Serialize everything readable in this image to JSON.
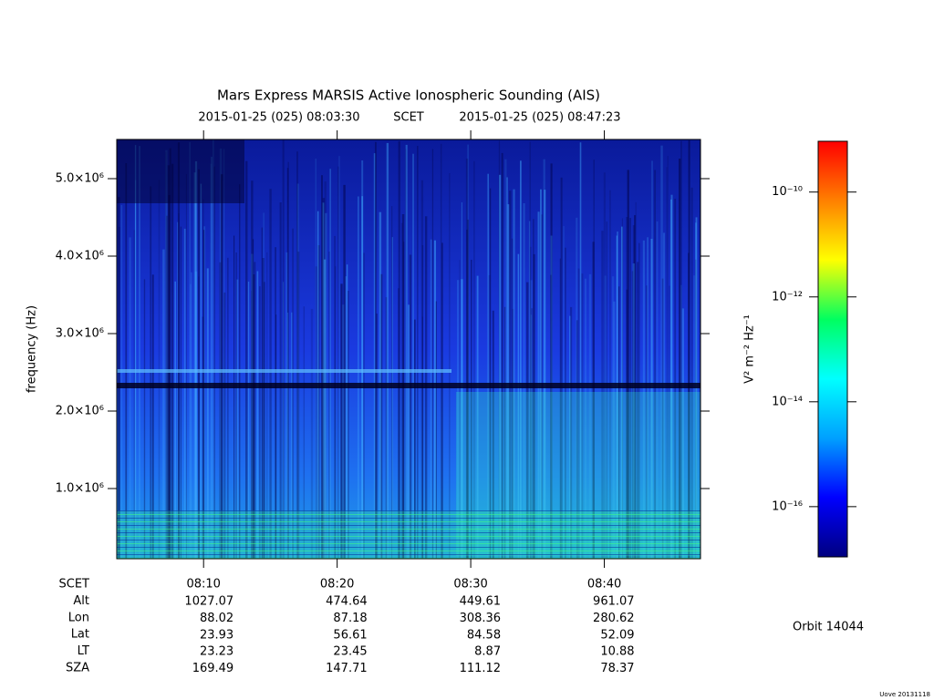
{
  "chart_data": {
    "type": "spectrogram",
    "title": "Mars Express MARSIS Active Ionospheric Sounding (AIS)",
    "start_time": "2015-01-25 (025) 08:03:30",
    "time_system": "SCET",
    "end_time": "2015-01-25 (025) 08:47:23",
    "y_label": "frequency (Hz)",
    "xlim": [
      483.5,
      527.2
    ],
    "xticks": [
      {
        "value": 490,
        "label": "08:10"
      },
      {
        "value": 500,
        "label": "08:20"
      },
      {
        "value": 510,
        "label": "08:30"
      },
      {
        "value": 520,
        "label": "08:40"
      }
    ],
    "ylim": [
      94000,
      5506000
    ],
    "yticks": [
      {
        "value": 1000000,
        "label": "1.0×10⁶"
      },
      {
        "value": 2000000,
        "label": "2.0×10⁶"
      },
      {
        "value": 3000000,
        "label": "3.0×10⁶"
      },
      {
        "value": 4000000,
        "label": "4.0×10⁶"
      },
      {
        "value": 5000000,
        "label": "5.0×10⁶"
      }
    ],
    "colorbar": {
      "label": "V² m⁻² Hz⁻¹",
      "log_scale": true,
      "lim": [
        1.1e-17,
        9.3e-10
      ],
      "ticks": [
        {
          "value": 1e-10,
          "label": "10⁻¹⁰"
        },
        {
          "value": 1e-12,
          "label": "10⁻¹²"
        },
        {
          "value": 1e-14,
          "label": "10⁻¹⁴"
        },
        {
          "value": 1e-16,
          "label": "10⁻¹⁶"
        }
      ],
      "colors": [
        "#000080",
        "#0000ff",
        "#00a0ff",
        "#00ffff",
        "#00ff60",
        "#ffff00",
        "#ff8000",
        "#ff0000"
      ]
    },
    "ephemeris": {
      "labels": [
        "SCET",
        "Alt",
        "Lon",
        "Lat",
        "LT",
        "SZA"
      ],
      "rows": [
        [
          1027.07,
          474.64,
          449.61,
          961.07
        ],
        [
          88.02,
          87.18,
          308.36,
          280.62
        ],
        [
          23.93,
          56.61,
          84.58,
          52.09
        ],
        [
          23.23,
          23.45,
          8.87,
          10.88
        ],
        [
          169.49,
          147.71,
          111.12,
          78.37
        ]
      ]
    },
    "orbit": "Orbit 14044",
    "footer": "Uove 20131118"
  }
}
